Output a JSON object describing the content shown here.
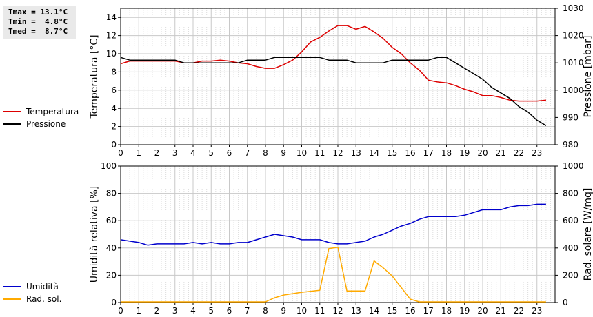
{
  "stats": [
    {
      "label": "Tmax =",
      "value": "13.1°C"
    },
    {
      "label": "Tmin =",
      "value": " 4.8°C"
    },
    {
      "label": "Tmed =",
      "value": " 8.7°C"
    }
  ],
  "chart_data": [
    {
      "type": "line",
      "x_ticks": [
        0,
        1,
        2,
        3,
        4,
        5,
        6,
        7,
        8,
        9,
        10,
        11,
        12,
        13,
        14,
        15,
        16,
        17,
        18,
        19,
        20,
        21,
        22,
        23
      ],
      "xlim": [
        0,
        24
      ],
      "ylabel": "Temperatura [°C]",
      "ylim": [
        0,
        15
      ],
      "y_ticks": [
        0,
        2,
        4,
        6,
        8,
        10,
        12,
        14
      ],
      "y2label": "Pressione [mbar]",
      "y2lim": [
        980,
        1030
      ],
      "y2_ticks": [
        980,
        990,
        1000,
        1010,
        1020,
        1030
      ],
      "grid": true,
      "legend_position": "left",
      "series": [
        {
          "name": "Temperatura",
          "axis": "left",
          "color": "#dd0000",
          "x": [
            0,
            0.5,
            1,
            1.5,
            2,
            2.5,
            3,
            3.5,
            4,
            4.5,
            5,
            5.5,
            6,
            6.5,
            7,
            7.5,
            8,
            8.5,
            9,
            9.5,
            10,
            10.5,
            11,
            11.5,
            12,
            12.5,
            13,
            13.5,
            14,
            14.5,
            15,
            15.5,
            16,
            16.5,
            17,
            17.5,
            18,
            18.5,
            19,
            19.5,
            20,
            20.5,
            21,
            21.5,
            22,
            22.5,
            23,
            23.5
          ],
          "y": [
            8.9,
            9.2,
            9.2,
            9.2,
            9.2,
            9.2,
            9.2,
            9.0,
            9.0,
            9.2,
            9.2,
            9.3,
            9.2,
            9.0,
            8.9,
            8.6,
            8.4,
            8.4,
            8.8,
            9.3,
            10.2,
            11.3,
            11.8,
            12.5,
            13.1,
            13.1,
            12.7,
            13.0,
            12.4,
            11.7,
            10.7,
            10.0,
            9.0,
            8.2,
            7.1,
            6.9,
            6.8,
            6.5,
            6.1,
            5.8,
            5.4,
            5.4,
            5.2,
            4.9,
            4.8,
            4.8,
            4.8,
            4.9
          ]
        },
        {
          "name": "Pressione",
          "axis": "right",
          "color": "#000000",
          "x": [
            0,
            0.5,
            1,
            1.5,
            2,
            2.5,
            3,
            3.5,
            4,
            4.5,
            5,
            5.5,
            6,
            6.5,
            7,
            7.5,
            8,
            8.5,
            9,
            9.5,
            10,
            10.5,
            11,
            11.5,
            12,
            12.5,
            13,
            13.5,
            14,
            14.5,
            15,
            15.5,
            16,
            16.5,
            17,
            17.5,
            18,
            18.5,
            19,
            19.5,
            20,
            20.5,
            21,
            21.5,
            22,
            22.5,
            23,
            23.5
          ],
          "y": [
            1012,
            1011,
            1011,
            1011,
            1011,
            1011,
            1011,
            1010,
            1010,
            1010,
            1010,
            1010,
            1010,
            1010,
            1011,
            1011,
            1011,
            1012,
            1012,
            1012,
            1012,
            1012,
            1012,
            1011,
            1011,
            1011,
            1010,
            1010,
            1010,
            1010,
            1011,
            1011,
            1011,
            1011,
            1011,
            1012,
            1012,
            1010,
            1008,
            1006,
            1004,
            1001,
            999,
            997,
            994,
            992,
            989,
            987
          ]
        }
      ]
    },
    {
      "type": "line",
      "x_ticks": [
        0,
        1,
        2,
        3,
        4,
        5,
        6,
        7,
        8,
        9,
        10,
        11,
        12,
        13,
        14,
        15,
        16,
        17,
        18,
        19,
        20,
        21,
        22,
        23
      ],
      "xlim": [
        0,
        24
      ],
      "ylabel": "Umidità relativa [%]",
      "ylim": [
        0,
        100
      ],
      "y_ticks": [
        0,
        20,
        40,
        60,
        80,
        100
      ],
      "y2label": "Rad. solare [W/mq]",
      "y2lim": [
        0,
        1000
      ],
      "y2_ticks": [
        0,
        200,
        400,
        600,
        800,
        1000
      ],
      "grid": true,
      "legend_position": "left",
      "series": [
        {
          "name": "Umidità",
          "axis": "left",
          "color": "#0000cc",
          "x": [
            0,
            0.5,
            1,
            1.5,
            2,
            2.5,
            3,
            3.5,
            4,
            4.5,
            5,
            5.5,
            6,
            6.5,
            7,
            7.5,
            8,
            8.5,
            9,
            9.5,
            10,
            10.5,
            11,
            11.5,
            12,
            12.5,
            13,
            13.5,
            14,
            14.5,
            15,
            15.5,
            16,
            16.5,
            17,
            17.5,
            18,
            18.5,
            19,
            19.5,
            20,
            20.5,
            21,
            21.5,
            22,
            22.5,
            23,
            23.5
          ],
          "y": [
            46,
            45,
            44,
            42,
            43,
            43,
            43,
            43,
            44,
            43,
            44,
            43,
            43,
            44,
            44,
            46,
            48,
            50,
            49,
            48,
            46,
            46,
            46,
            44,
            43,
            43,
            44,
            45,
            48,
            50,
            53,
            56,
            58,
            61,
            63,
            63,
            63,
            63,
            64,
            66,
            68,
            68,
            68,
            70,
            71,
            71,
            72,
            72
          ]
        },
        {
          "name": "Rad. sol.",
          "axis": "right",
          "color": "#ffaa00",
          "x": [
            0,
            8,
            8.5,
            9,
            10,
            11,
            11.5,
            12,
            12.5,
            13,
            13.5,
            14,
            14.5,
            15,
            16,
            16.5,
            23.5
          ],
          "y": [
            5,
            5,
            35,
            55,
            75,
            90,
            395,
            405,
            85,
            85,
            85,
            305,
            255,
            195,
            25,
            5,
            5
          ]
        }
      ]
    }
  ]
}
